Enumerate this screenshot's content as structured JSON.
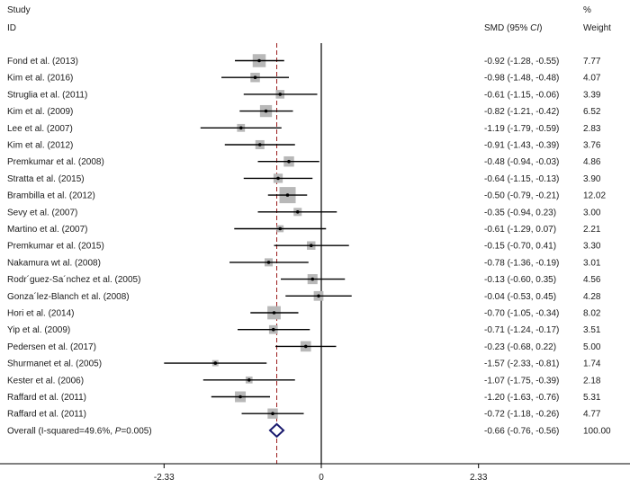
{
  "chart_data": {
    "type": "forest",
    "headers": {
      "study_top": "Study",
      "study_bottom": "ID",
      "smd": "SMD (95% ",
      "smd_ci": "CI",
      "smd_close": ")",
      "weight_top": "%",
      "weight_bottom": "Weight"
    },
    "studies": [
      {
        "label": "Fond et al. (2013)",
        "smd": -0.92,
        "lo": -1.28,
        "hi": -0.55,
        "ci_text": "-0.92 (-1.28, -0.55)",
        "weight": 7.77,
        "weight_text": "7.77"
      },
      {
        "label": "Kim et al. (2016)",
        "smd": -0.98,
        "lo": -1.48,
        "hi": -0.48,
        "ci_text": "-0.98 (-1.48, -0.48)",
        "weight": 4.07,
        "weight_text": "4.07"
      },
      {
        "label": "Struglia et al. (2011)",
        "smd": -0.61,
        "lo": -1.15,
        "hi": -0.06,
        "ci_text": "-0.61 (-1.15, -0.06)",
        "weight": 3.39,
        "weight_text": "3.39"
      },
      {
        "label": "Kim et al. (2009)",
        "smd": -0.82,
        "lo": -1.21,
        "hi": -0.42,
        "ci_text": "-0.82 (-1.21, -0.42)",
        "weight": 6.52,
        "weight_text": "6.52"
      },
      {
        "label": "Lee et al. (2007)",
        "smd": -1.19,
        "lo": -1.79,
        "hi": -0.59,
        "ci_text": "-1.19 (-1.79, -0.59)",
        "weight": 2.83,
        "weight_text": "2.83"
      },
      {
        "label": "Kim et al. (2012)",
        "smd": -0.91,
        "lo": -1.43,
        "hi": -0.39,
        "ci_text": "-0.91 (-1.43, -0.39)",
        "weight": 3.76,
        "weight_text": "3.76"
      },
      {
        "label": "Premkumar et al. (2008)",
        "smd": -0.48,
        "lo": -0.94,
        "hi": -0.03,
        "ci_text": "-0.48 (-0.94, -0.03)",
        "weight": 4.86,
        "weight_text": "4.86"
      },
      {
        "label": "Stratta et al. (2015)",
        "smd": -0.64,
        "lo": -1.15,
        "hi": -0.13,
        "ci_text": "-0.64 (-1.15, -0.13)",
        "weight": 3.9,
        "weight_text": "3.90"
      },
      {
        "label": "Brambilla et al. (2012)",
        "smd": -0.5,
        "lo": -0.79,
        "hi": -0.21,
        "ci_text": "-0.50 (-0.79, -0.21)",
        "weight": 12.02,
        "weight_text": "12.02"
      },
      {
        "label": "Sevy et al. (2007)",
        "smd": -0.35,
        "lo": -0.94,
        "hi": 0.23,
        "ci_text": "-0.35 (-0.94, 0.23)",
        "weight": 3.0,
        "weight_text": "3.00"
      },
      {
        "label": "Martino et al. (2007)",
        "smd": -0.61,
        "lo": -1.29,
        "hi": 0.07,
        "ci_text": "-0.61 (-1.29, 0.07)",
        "weight": 2.21,
        "weight_text": "2.21"
      },
      {
        "label": "Premkumar et al. (2015)",
        "smd": -0.15,
        "lo": -0.7,
        "hi": 0.41,
        "ci_text": "-0.15 (-0.70, 0.41)",
        "weight": 3.3,
        "weight_text": "3.30"
      },
      {
        "label": "Nakamura wt al. (2008)",
        "smd": -0.78,
        "lo": -1.36,
        "hi": -0.19,
        "ci_text": "-0.78 (-1.36, -0.19)",
        "weight": 3.01,
        "weight_text": "3.01"
      },
      {
        "label": "Rodr´guez-Sa´nchez et al. (2005)",
        "smd": -0.13,
        "lo": -0.6,
        "hi": 0.35,
        "ci_text": "-0.13 (-0.60, 0.35)",
        "weight": 4.56,
        "weight_text": "4.56"
      },
      {
        "label": "Gonza´lez-Blanch et al. (2008)",
        "smd": -0.04,
        "lo": -0.53,
        "hi": 0.45,
        "ci_text": "-0.04 (-0.53, 0.45)",
        "weight": 4.28,
        "weight_text": "4.28"
      },
      {
        "label": "Hori et al. (2014)",
        "smd": -0.7,
        "lo": -1.05,
        "hi": -0.34,
        "ci_text": "-0.70 (-1.05, -0.34)",
        "weight": 8.02,
        "weight_text": "8.02"
      },
      {
        "label": "Yip et al. (2009)",
        "smd": -0.71,
        "lo": -1.24,
        "hi": -0.17,
        "ci_text": "-0.71 (-1.24, -0.17)",
        "weight": 3.51,
        "weight_text": "3.51"
      },
      {
        "label": "Pedersen et al. (2017)",
        "smd": -0.23,
        "lo": -0.68,
        "hi": 0.22,
        "ci_text": "-0.23 (-0.68, 0.22)",
        "weight": 5.0,
        "weight_text": "5.00"
      },
      {
        "label": "Shurmanet et al. (2005)",
        "smd": -1.57,
        "lo": -2.33,
        "hi": -0.81,
        "ci_text": "-1.57 (-2.33, -0.81)",
        "weight": 1.74,
        "weight_text": "1.74"
      },
      {
        "label": "Kester et al. (2006)",
        "smd": -1.07,
        "lo": -1.75,
        "hi": -0.39,
        "ci_text": "-1.07 (-1.75, -0.39)",
        "weight": 2.18,
        "weight_text": "2.18"
      },
      {
        "label": "Raffard et al. (2011)",
        "smd": -1.2,
        "lo": -1.63,
        "hi": -0.76,
        "ci_text": "-1.20 (-1.63, -0.76)",
        "weight": 5.31,
        "weight_text": "5.31"
      },
      {
        "label": "Raffard et al. (2011)",
        "smd": -0.72,
        "lo": -1.18,
        "hi": -0.26,
        "ci_text": "-0.72 (-1.18, -0.26)",
        "weight": 4.77,
        "weight_text": "4.77"
      }
    ],
    "overall": {
      "label_prefix": "Overall  (I-squared=49.6%, ",
      "label_p": "P",
      "label_suffix": "=0.005)",
      "smd": -0.66,
      "lo": -0.76,
      "hi": -0.56,
      "ci_text": "-0.66 (-0.76, -0.56)",
      "weight_text": "100.00"
    },
    "x_ticks": [
      {
        "value": -2.33,
        "label": "-2.33"
      },
      {
        "value": 0,
        "label": "0"
      },
      {
        "value": 2.33,
        "label": "2.33"
      }
    ],
    "xlim": [
      -4.66,
      4.66
    ],
    "null_line": 0,
    "pooled_line": -0.66,
    "colors": {
      "box": "#b8b8b8",
      "ci_line": "#000000",
      "point": "#000000",
      "null_line": "#000000",
      "pooled_line": "#9b1b1b",
      "diamond_stroke": "#1a1a6e",
      "axis": "#000000"
    }
  }
}
